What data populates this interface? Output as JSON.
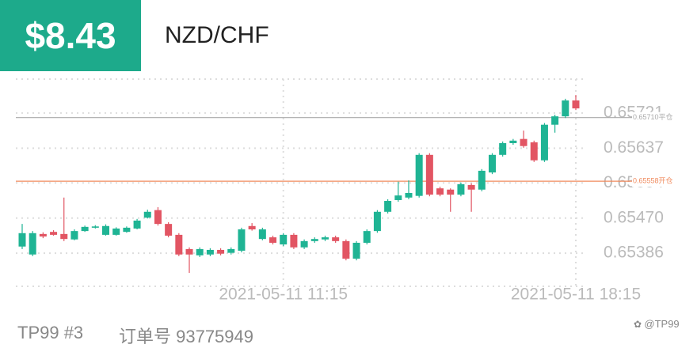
{
  "header": {
    "amount": "$8.43",
    "symbol": "NZD/CHF"
  },
  "chart_data": {
    "type": "candlestick",
    "categories": [
      null,
      null,
      null,
      null,
      null,
      null,
      null,
      null,
      null,
      null,
      null,
      null,
      null,
      null,
      null,
      null,
      null,
      null,
      null,
      null,
      null,
      null,
      null,
      null,
      null,
      "2021-05-11 11:15",
      null,
      null,
      null,
      null,
      null,
      null,
      null,
      null,
      null,
      null,
      null,
      null,
      null,
      null,
      null,
      null,
      null,
      null,
      null,
      null,
      null,
      null,
      null,
      null,
      null,
      null,
      null,
      "2021-05-11 18:15"
    ],
    "series": [
      {
        "up_color": "#1fb494",
        "down_color": "#e25563",
        "open": [
          0.65402,
          0.65383,
          0.65432,
          0.65437,
          0.65432,
          0.65419,
          0.65439,
          0.65447,
          0.6543,
          0.6543,
          0.65437,
          0.65445,
          0.65471,
          0.65489,
          0.65456,
          0.6543,
          0.65396,
          0.65381,
          0.65383,
          0.65394,
          0.65387,
          0.65392,
          0.65451,
          0.6542,
          0.65424,
          0.65407,
          0.6543,
          0.654,
          0.65415,
          0.65419,
          0.65424,
          0.65415,
          0.65373,
          0.65411,
          0.65439,
          0.65485,
          0.65513,
          0.65519,
          0.65523,
          0.65621,
          0.65541,
          0.65538,
          0.65526,
          0.65549,
          0.65538,
          0.65579,
          0.65621,
          0.65649,
          0.65659,
          0.65651,
          0.65608,
          0.65693,
          0.65713,
          0.65751
        ],
        "high": [
          0.65456,
          0.65439,
          0.65436,
          0.65441,
          0.65519,
          0.65443,
          0.65452,
          0.65453,
          0.65455,
          0.65448,
          0.6545,
          0.65468,
          0.6549,
          0.65496,
          0.6546,
          0.65434,
          0.654,
          0.654,
          0.65398,
          0.65398,
          0.654,
          0.65447,
          0.65458,
          0.65447,
          0.65428,
          0.65434,
          0.65434,
          0.65419,
          0.65424,
          0.65428,
          0.65428,
          0.65419,
          0.65415,
          0.65443,
          0.65489,
          0.65515,
          0.65557,
          0.6556,
          0.65625,
          0.65625,
          0.65545,
          0.65541,
          0.65555,
          0.65553,
          0.65587,
          0.65625,
          0.65653,
          0.65659,
          0.65679,
          0.65655,
          0.65697,
          0.65717,
          0.65755,
          0.65764
        ],
        "low": [
          0.65396,
          0.65379,
          0.65422,
          0.65428,
          0.65415,
          0.65417,
          0.65437,
          0.65445,
          0.65428,
          0.65428,
          0.65435,
          0.65443,
          0.65469,
          0.65452,
          0.65424,
          0.65379,
          0.65339,
          0.65377,
          0.65379,
          0.65381,
          0.65383,
          0.65388,
          0.6544,
          0.65417,
          0.65407,
          0.65403,
          0.65396,
          0.65396,
          0.65411,
          0.65415,
          0.65411,
          0.65369,
          0.65369,
          0.65407,
          0.65435,
          0.65481,
          0.65509,
          0.65515,
          0.65519,
          0.65522,
          0.65522,
          0.65485,
          0.65522,
          0.65485,
          0.65534,
          0.65575,
          0.65617,
          0.65645,
          0.65638,
          0.65604,
          0.65604,
          0.65674,
          0.65709,
          0.65728
        ],
        "close": [
          0.65434,
          0.65434,
          0.65426,
          0.6543,
          0.6542,
          0.65439,
          0.65449,
          0.6545,
          0.65451,
          0.65445,
          0.65447,
          0.65464,
          0.65485,
          0.65456,
          0.65428,
          0.65383,
          0.65383,
          0.65396,
          0.65394,
          0.65385,
          0.65396,
          0.65443,
          0.65443,
          0.65443,
          0.65411,
          0.6543,
          0.654,
          0.65415,
          0.6542,
          0.65424,
          0.65415,
          0.65373,
          0.65411,
          0.65439,
          0.65485,
          0.65511,
          0.65524,
          0.6553,
          0.65621,
          0.65526,
          0.65526,
          0.65526,
          0.65551,
          0.65538,
          0.65583,
          0.65621,
          0.65649,
          0.65655,
          0.65642,
          0.65608,
          0.65693,
          0.65713,
          0.65751,
          0.65732
        ]
      }
    ],
    "ylim": [
      0.65307,
      0.65802
    ],
    "yticks": [
      {
        "value": 0.65386,
        "label": "0.65386"
      },
      {
        "value": 0.6547,
        "label": "0.65470"
      },
      {
        "value": 0.65554,
        "label": "0.65554"
      },
      {
        "value": 0.65637,
        "label": "0.65637"
      },
      {
        "value": 0.65721,
        "label": "0.65721"
      }
    ],
    "grid": true,
    "reference_lines": [
      {
        "value": 0.6571,
        "label": "0.65710平仓",
        "color": "#aaaaaa"
      },
      {
        "value": 0.65558,
        "label": "0.65558开仓",
        "color": "#f08a5d"
      }
    ]
  },
  "footer": {
    "account": "TP99 #3",
    "order": "订单号 93775949",
    "watermark": "@TP99"
  }
}
